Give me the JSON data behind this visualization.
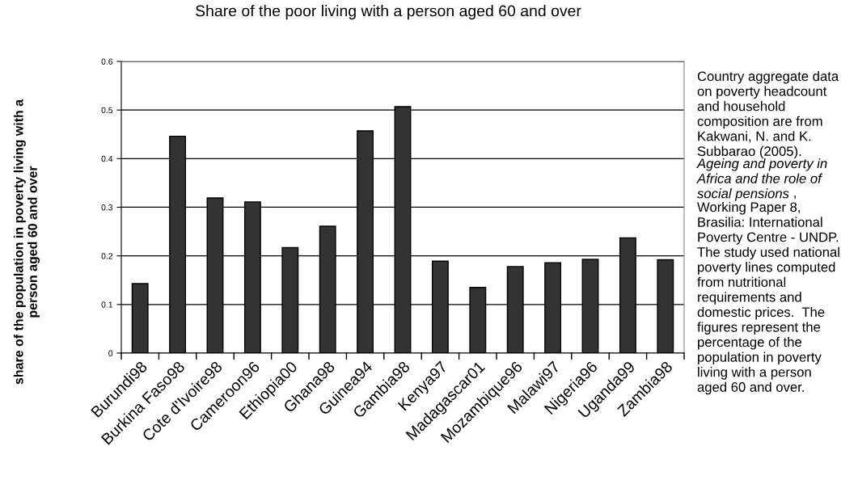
{
  "chart_data": {
    "type": "bar",
    "title": "Share of the poor living with a person aged 60 and over",
    "ylabel": "share of the population in poverty living with a\nperson aged 60 and over",
    "categories": [
      "Burundi98",
      "Burkina Faso98",
      "Cote d'Ivoire98",
      "Cameroon96",
      "Ethiopia00",
      "Ghana98",
      "Guinea94",
      "Gambia98",
      "Kenya97",
      "Madagascar01",
      "Mozambique96",
      "Malawi97",
      "Nigeria96",
      "Uganda99",
      "Zambia98"
    ],
    "values": [
      0.143,
      0.446,
      0.319,
      0.311,
      0.217,
      0.261,
      0.457,
      0.507,
      0.189,
      0.135,
      0.178,
      0.186,
      0.193,
      0.237,
      0.192
    ],
    "color": "#333333",
    "ylim": [
      0,
      0.6
    ],
    "yticks": [
      {
        "value": 0,
        "label": "0"
      },
      0.1,
      0.2,
      0.3,
      0.4,
      0.5,
      0.6
    ],
    "grid": "y",
    "annotations": [
      "Country aggregate data\non poverty headcount\nand household\ncomposition are from\nKakwani, N. and K.\nSubbarao (2005).",
      "Ageing and poverty in\nAfrica and the role of\nsocial pensions",
      " ,\nWorking Paper 8,\nBrasilia: International\nPoverty Centre - UNDP.\nThe study used national\npoverty lines computed\nfrom nutritional\nrequirements and\ndomestic prices.  The\nfigures represent the\npercentage of the\npopulation in poverty\nliving with a person\naged 60 and over."
    ]
  }
}
